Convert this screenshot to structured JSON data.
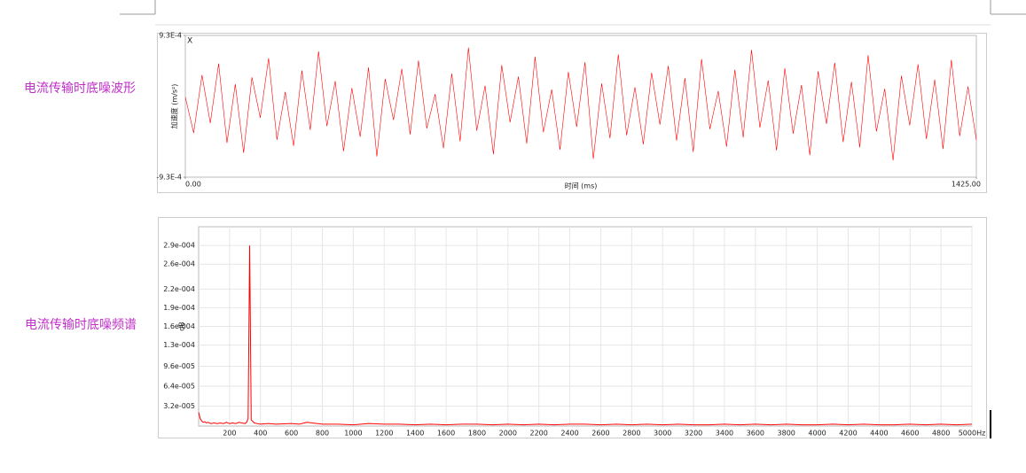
{
  "captions": [
    "电流传输时底噪波形",
    "电流传输时底噪频谱"
  ],
  "chart_data": [
    {
      "type": "line",
      "annotation": "X",
      "xlabel": "时间 (ms)",
      "ylabel": "加速度 (m/s²)",
      "xlim": [
        0,
        1425
      ],
      "xticks": [
        {
          "value": 0,
          "label": "0.00"
        },
        {
          "value": 1425,
          "label": "1425.00"
        }
      ],
      "ylim": [
        -0.00093,
        0.00093
      ],
      "yticks": [
        {
          "value": 0.00093,
          "label": "9.3E-4"
        },
        {
          "value": -0.00093,
          "label": "-9.3E-4"
        }
      ],
      "grid": false,
      "x": [
        0,
        15,
        30,
        45,
        60,
        75,
        90,
        105,
        120,
        135,
        150,
        165,
        180,
        195,
        210,
        225,
        240,
        255,
        270,
        285,
        300,
        315,
        330,
        345,
        360,
        375,
        390,
        405,
        420,
        435,
        450,
        465,
        480,
        495,
        510,
        525,
        540,
        555,
        570,
        585,
        600,
        615,
        630,
        645,
        660,
        675,
        690,
        705,
        720,
        735,
        750,
        765,
        780,
        795,
        810,
        825,
        840,
        855,
        870,
        885,
        900,
        915,
        930,
        945,
        960,
        975,
        990,
        1005,
        1020,
        1035,
        1050,
        1065,
        1080,
        1095,
        1110,
        1125,
        1140,
        1155,
        1170,
        1185,
        1200,
        1215,
        1230,
        1245,
        1260,
        1275,
        1290,
        1305,
        1320,
        1335,
        1350,
        1365,
        1380,
        1395,
        1410,
        1425
      ],
      "series": [
        {
          "color": "#ff0000",
          "values": [
            0.00012,
            -0.00035,
            0.00041,
            -0.00022,
            0.00056,
            -0.00048,
            0.00029,
            -0.00061,
            0.00038,
            -0.00015,
            0.00063,
            -0.00044,
            0.00019,
            -0.00052,
            0.00047,
            -0.00031,
            0.00072,
            -0.00026,
            0.00033,
            -0.00059,
            0.00024,
            -0.0004,
            0.00051,
            -0.00066,
            0.00036,
            -0.00018,
            0.00049,
            -0.00037,
            0.0006,
            -0.00029,
            0.00016,
            -0.00055,
            0.00043,
            -0.00046,
            0.00077,
            -0.00032,
            0.00027,
            -0.00063,
            0.00054,
            -0.00021,
            0.00039,
            -0.00049,
            0.00065,
            -0.00034,
            0.00022,
            -0.00057,
            0.00045,
            -0.00027,
            0.00058,
            -0.00069,
            0.0003,
            -0.00042,
            0.00068,
            -0.00038,
            0.00025,
            -0.0005,
            0.00044,
            -0.00024,
            0.00053,
            -0.00045,
            0.00037,
            -0.0006,
            0.00062,
            -0.0003,
            0.0002,
            -0.00053,
            0.00048,
            -0.00041,
            0.00074,
            -0.00028,
            0.00034,
            -0.00058,
            0.0005,
            -0.00036,
            0.00028,
            -0.00064,
            0.00046,
            -0.00023,
            0.00057,
            -0.00047,
            0.00032,
            -0.00054,
            0.00067,
            -0.00033,
            0.00023,
            -0.00071,
            0.0004,
            -0.00025,
            0.00055,
            -0.00043,
            0.00035,
            -0.00056,
            0.00061,
            -0.00039,
            0.00026,
            -0.00044
          ]
        }
      ]
    },
    {
      "type": "line",
      "ylabel": "dB",
      "xlim": [
        0,
        5000
      ],
      "xticks": [
        200,
        400,
        600,
        800,
        1000,
        1200,
        1400,
        1600,
        1800,
        2000,
        2200,
        2400,
        2600,
        2800,
        3000,
        3200,
        3400,
        3600,
        3800,
        4000,
        4200,
        4400,
        4600,
        4800,
        {
          "value": 5000,
          "label": "5000Hz"
        }
      ],
      "ylim": [
        0,
        0.00032
      ],
      "yticks": [
        {
          "value": 3.2e-05,
          "label": "3.2e-005"
        },
        {
          "value": 6.4e-05,
          "label": "6.4e-005"
        },
        {
          "value": 9.6e-05,
          "label": "9.6e-005"
        },
        {
          "value": 0.00013,
          "label": "1.3e-004"
        },
        {
          "value": 0.00016,
          "label": "1.6e-004"
        },
        {
          "value": 0.00019,
          "label": "1.9e-004"
        },
        {
          "value": 0.00022,
          "label": "2.2e-004"
        },
        {
          "value": 0.00026,
          "label": "2.6e-004"
        },
        {
          "value": 0.00029,
          "label": "2.9e-004"
        }
      ],
      "grid": true,
      "x": [
        0,
        10,
        20,
        30,
        40,
        50,
        60,
        80,
        100,
        120,
        140,
        160,
        180,
        200,
        220,
        240,
        260,
        280,
        300,
        310,
        320,
        330,
        340,
        360,
        380,
        400,
        450,
        500,
        600,
        650,
        700,
        800,
        900,
        1000,
        1100,
        1200,
        1300,
        1400,
        1500,
        1600,
        1700,
        1800,
        1900,
        2000,
        2100,
        2200,
        2300,
        2400,
        2500,
        2600,
        2700,
        2800,
        2900,
        3000,
        3100,
        3200,
        3300,
        3400,
        3500,
        3600,
        3700,
        3800,
        3900,
        4000,
        4100,
        4200,
        4300,
        4400,
        4500,
        4600,
        4700,
        4800,
        4900,
        5000
      ],
      "series": [
        {
          "color": "#ff0000",
          "values": [
            2.2e-05,
            1.2e-05,
            8e-06,
            6e-06,
            7e-06,
            5e-06,
            6e-06,
            4e-06,
            5e-06,
            4e-06,
            5e-06,
            4e-06,
            6e-06,
            4e-06,
            5e-06,
            4e-06,
            6e-06,
            5e-06,
            4e-06,
            6e-06,
            1.2e-05,
            0.00029,
            1e-05,
            5e-06,
            4e-06,
            3e-06,
            4e-06,
            3e-06,
            4e-06,
            3e-06,
            6e-06,
            3e-06,
            3e-06,
            2e-06,
            4e-06,
            3e-06,
            3e-06,
            2e-06,
            3e-06,
            2e-06,
            3e-06,
            3e-06,
            2e-06,
            3e-06,
            2e-06,
            3e-06,
            2e-06,
            3e-06,
            3e-06,
            2e-06,
            3e-06,
            2e-06,
            3e-06,
            2e-06,
            3e-06,
            2e-06,
            2e-06,
            3e-06,
            2e-06,
            3e-06,
            2e-06,
            3e-06,
            2e-06,
            2e-06,
            3e-06,
            2e-06,
            3e-06,
            2e-06,
            2e-06,
            3e-06,
            2e-06,
            3e-06,
            2e-06,
            3e-06
          ]
        }
      ]
    }
  ]
}
